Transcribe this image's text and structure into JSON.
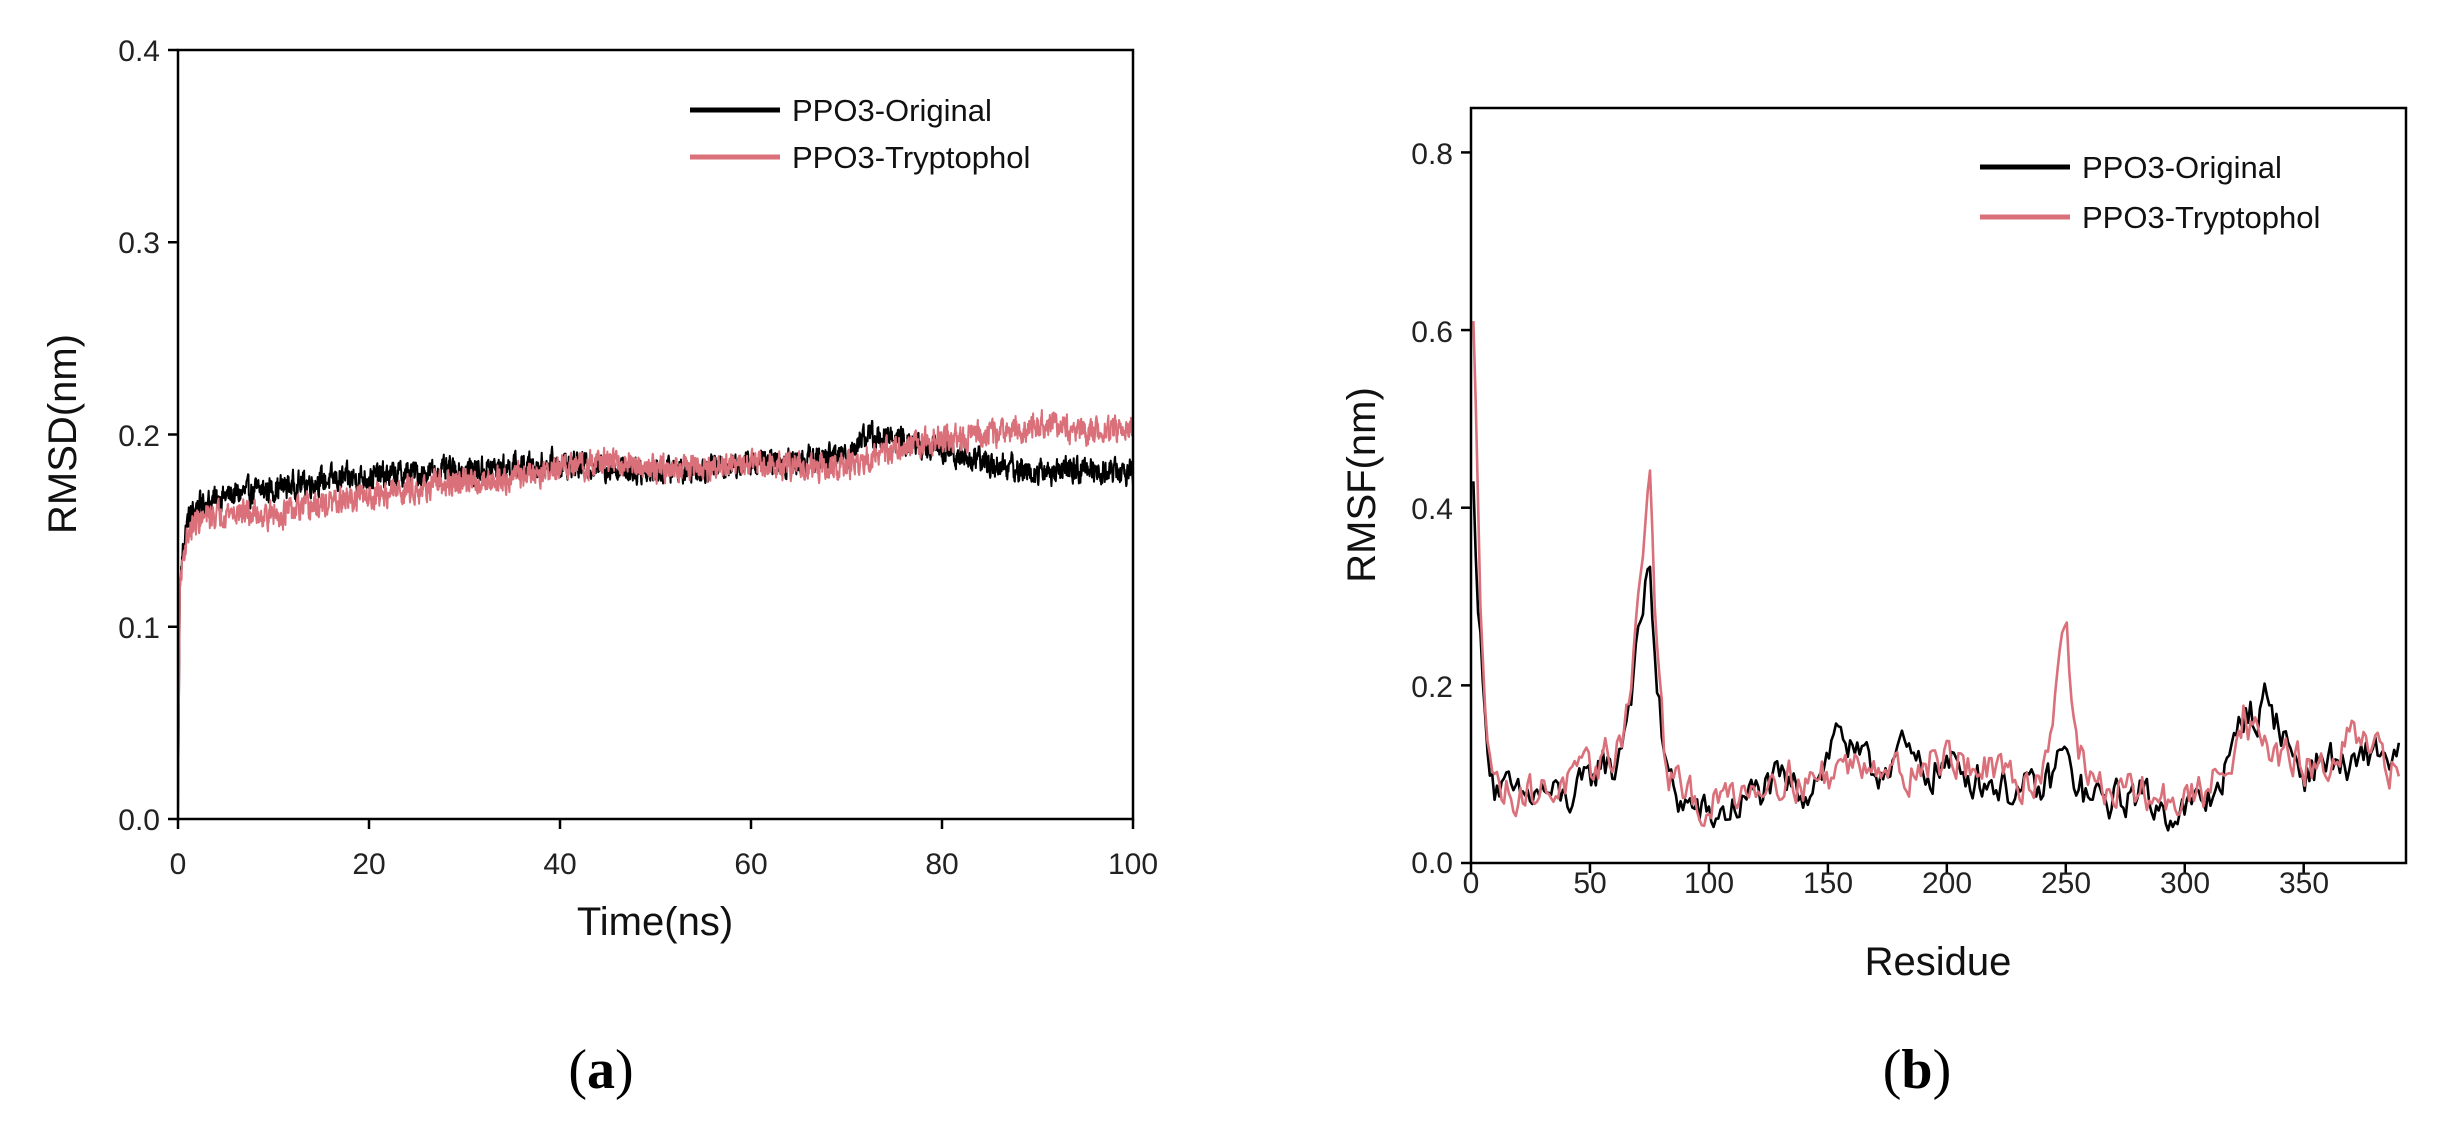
{
  "colors": {
    "original": "#000000",
    "tryptophol": "#d9707a"
  },
  "chart_data": [
    {
      "panel": "a",
      "caption": {
        "open": "(",
        "letter": "a",
        "close": ")"
      },
      "type": "line",
      "xlabel": "Time(ns)",
      "ylabel": "RMSD(nm)",
      "xlim": [
        0,
        100
      ],
      "ylim": [
        0,
        0.4
      ],
      "xticks": [
        0,
        20,
        40,
        60,
        80,
        100
      ],
      "yticks": [
        0.0,
        0.1,
        0.2,
        0.3,
        0.4
      ],
      "xtick_labels": [
        "0",
        "20",
        "40",
        "60",
        "80",
        "100"
      ],
      "ytick_labels": [
        "0.0",
        "0.1",
        "0.2",
        "0.3",
        "0.4"
      ],
      "legend": {
        "position": "top-right",
        "entries": [
          "PPO3-Original",
          "PPO3-Tryptophol"
        ]
      },
      "series": [
        {
          "name": "PPO3-Original",
          "color_key": "original",
          "noise": 0.0105,
          "x": [
            0,
            0.2,
            0.5,
            1,
            2,
            5,
            10,
            15,
            20,
            25,
            30,
            35,
            40,
            45,
            50,
            55,
            60,
            65,
            70,
            72,
            75,
            80,
            85,
            90,
            95,
            100
          ],
          "y": [
            0.0,
            0.12,
            0.14,
            0.155,
            0.163,
            0.168,
            0.172,
            0.176,
            0.178,
            0.18,
            0.181,
            0.183,
            0.185,
            0.183,
            0.181,
            0.183,
            0.185,
            0.186,
            0.19,
            0.2,
            0.197,
            0.192,
            0.185,
            0.18,
            0.182,
            0.18
          ]
        },
        {
          "name": "PPO3-Tryptophol",
          "color_key": "tryptophol",
          "noise": 0.0105,
          "x": [
            0,
            0.2,
            0.5,
            1,
            2,
            5,
            10,
            15,
            20,
            25,
            30,
            35,
            40,
            45,
            50,
            55,
            60,
            65,
            70,
            75,
            80,
            85,
            90,
            95,
            100
          ],
          "y": [
            0.0,
            0.12,
            0.135,
            0.148,
            0.155,
            0.16,
            0.158,
            0.163,
            0.168,
            0.172,
            0.175,
            0.178,
            0.182,
            0.186,
            0.183,
            0.182,
            0.184,
            0.183,
            0.183,
            0.192,
            0.198,
            0.2,
            0.205,
            0.202,
            0.203
          ]
        }
      ]
    },
    {
      "panel": "b",
      "caption": {
        "open": "(",
        "letter": "b",
        "close": ")"
      },
      "type": "line",
      "xlabel": "Residue",
      "ylabel": "RMSF(nm)",
      "xlim": [
        0,
        393
      ],
      "ylim": [
        0,
        0.85
      ],
      "xticks": [
        0,
        50,
        100,
        150,
        200,
        250,
        300,
        350
      ],
      "yticks": [
        0.0,
        0.2,
        0.4,
        0.6,
        0.8
      ],
      "xtick_labels": [
        "0",
        "50",
        "100",
        "150",
        "200",
        "250",
        "300",
        "350"
      ],
      "ytick_labels": [
        "0.0",
        "0.2",
        "0.4",
        "0.6",
        "0.8"
      ],
      "legend": {
        "position": "top-right",
        "entries": [
          "PPO3-Original",
          "PPO3-Tryptophol"
        ]
      },
      "series": [
        {
          "name": "PPO3-Original",
          "color_key": "original",
          "noise": 0.035,
          "x": [
            1,
            3,
            6,
            10,
            15,
            20,
            30,
            40,
            50,
            55,
            60,
            65,
            70,
            73,
            75,
            78,
            82,
            88,
            95,
            100,
            110,
            120,
            130,
            140,
            150,
            155,
            160,
            170,
            180,
            190,
            200,
            210,
            220,
            230,
            240,
            245,
            248,
            252,
            260,
            270,
            280,
            290,
            300,
            310,
            320,
            326,
            330,
            335,
            340,
            350,
            360,
            370,
            380,
            385,
            390
          ],
          "y": [
            0.42,
            0.3,
            0.15,
            0.09,
            0.08,
            0.07,
            0.08,
            0.07,
            0.09,
            0.12,
            0.1,
            0.16,
            0.24,
            0.3,
            0.35,
            0.2,
            0.1,
            0.07,
            0.06,
            0.05,
            0.06,
            0.08,
            0.09,
            0.08,
            0.12,
            0.16,
            0.12,
            0.1,
            0.13,
            0.1,
            0.11,
            0.1,
            0.09,
            0.08,
            0.08,
            0.1,
            0.13,
            0.1,
            0.07,
            0.07,
            0.08,
            0.06,
            0.06,
            0.07,
            0.12,
            0.18,
            0.16,
            0.19,
            0.15,
            0.1,
            0.12,
            0.1,
            0.13,
            0.12,
            0.12
          ]
        },
        {
          "name": "PPO3-Tryptophol",
          "color_key": "tryptophol",
          "noise": 0.035,
          "x": [
            1,
            2,
            4,
            7,
            10,
            15,
            20,
            30,
            40,
            50,
            55,
            60,
            65,
            70,
            73,
            75,
            78,
            82,
            88,
            95,
            100,
            110,
            120,
            130,
            140,
            150,
            155,
            160,
            170,
            180,
            190,
            200,
            210,
            220,
            230,
            240,
            244,
            247,
            250,
            254,
            260,
            270,
            280,
            290,
            300,
            310,
            320,
            325,
            330,
            340,
            350,
            360,
            370,
            380,
            385,
            390
          ],
          "y": [
            0.6,
            0.5,
            0.3,
            0.15,
            0.09,
            0.08,
            0.08,
            0.08,
            0.09,
            0.1,
            0.12,
            0.12,
            0.16,
            0.28,
            0.38,
            0.44,
            0.25,
            0.1,
            0.08,
            0.07,
            0.06,
            0.08,
            0.09,
            0.1,
            0.09,
            0.1,
            0.11,
            0.11,
            0.12,
            0.1,
            0.11,
            0.12,
            0.11,
            0.1,
            0.09,
            0.1,
            0.16,
            0.24,
            0.28,
            0.14,
            0.09,
            0.08,
            0.08,
            0.07,
            0.07,
            0.08,
            0.13,
            0.17,
            0.14,
            0.12,
            0.11,
            0.1,
            0.14,
            0.12,
            0.11,
            0.1
          ]
        }
      ]
    }
  ]
}
